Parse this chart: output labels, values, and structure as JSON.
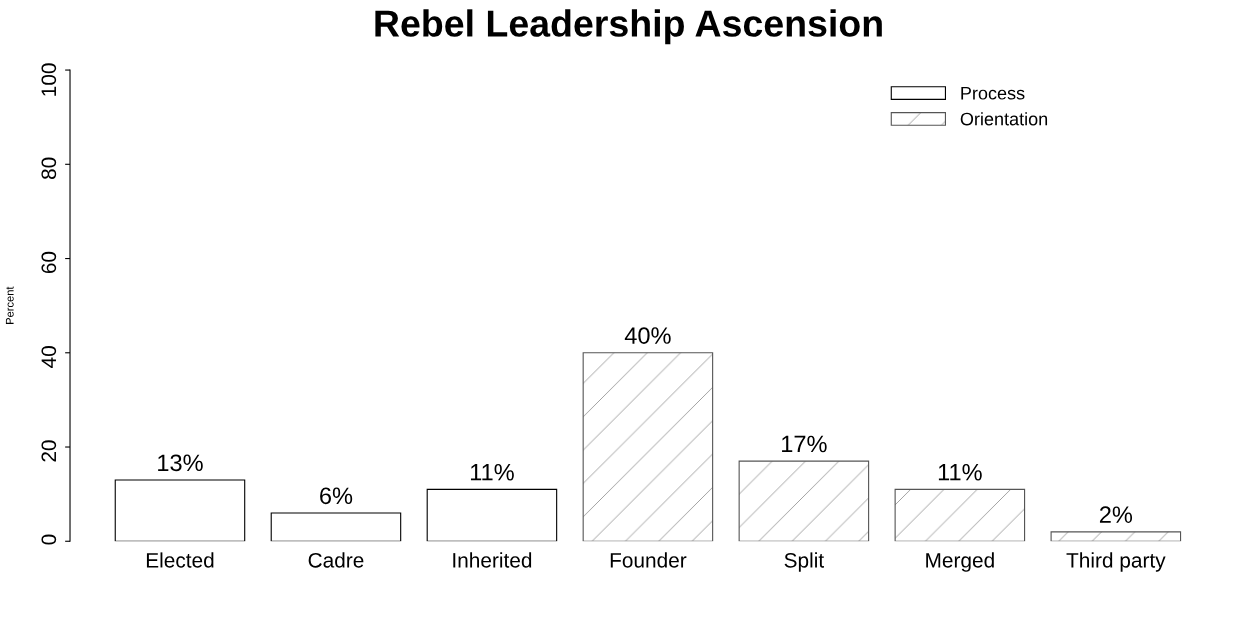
{
  "chart_data": {
    "type": "bar",
    "title": "Rebel Leadership Ascension",
    "ylabel": "Percent",
    "categories": [
      "Elected",
      "Cadre",
      "Inherited",
      "Founder",
      "Split",
      "Merged",
      "Third party"
    ],
    "series": [
      {
        "name": "Process",
        "color": "#ffffff",
        "values": [
          13,
          6,
          11,
          null,
          null,
          null,
          null
        ],
        "value_labels": [
          "13%",
          "6%",
          "11%",
          null,
          null,
          null,
          null
        ]
      },
      {
        "name": "Orientation",
        "color": "#555555",
        "values": [
          null,
          null,
          null,
          40,
          17,
          11,
          2
        ],
        "value_labels": [
          null,
          null,
          null,
          "40%",
          "17%",
          "11%",
          "2%"
        ]
      }
    ],
    "ylim": [
      0,
      100
    ],
    "yticks": [
      0,
      20,
      40,
      60,
      80,
      100
    ],
    "grid": false,
    "legend": "top right"
  }
}
